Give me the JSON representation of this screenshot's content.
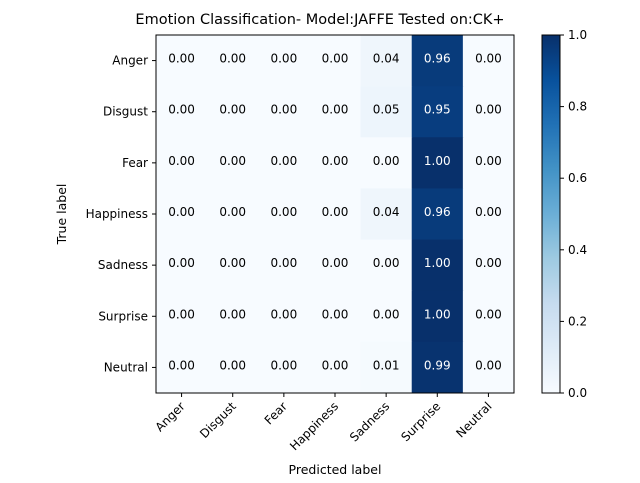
{
  "chart_data": {
    "type": "heatmap",
    "title": "Emotion Classification- Model:JAFFE Tested on:CK+",
    "xlabel": "Predicted label",
    "ylabel": "True label",
    "x_categories": [
      "Anger",
      "Disgust",
      "Fear",
      "Happiness",
      "Sadness",
      "Surprise",
      "Neutral"
    ],
    "y_categories": [
      "Anger",
      "Disgust",
      "Fear",
      "Happiness",
      "Sadness",
      "Surprise",
      "Neutral"
    ],
    "values": [
      [
        0.0,
        0.0,
        0.0,
        0.0,
        0.04,
        0.96,
        0.0
      ],
      [
        0.0,
        0.0,
        0.0,
        0.0,
        0.05,
        0.95,
        0.0
      ],
      [
        0.0,
        0.0,
        0.0,
        0.0,
        0.0,
        1.0,
        0.0
      ],
      [
        0.0,
        0.0,
        0.0,
        0.0,
        0.04,
        0.96,
        0.0
      ],
      [
        0.0,
        0.0,
        0.0,
        0.0,
        0.0,
        1.0,
        0.0
      ],
      [
        0.0,
        0.0,
        0.0,
        0.0,
        0.0,
        1.0,
        0.0
      ],
      [
        0.0,
        0.0,
        0.0,
        0.0,
        0.01,
        0.99,
        0.0
      ]
    ],
    "colormap": "Blues",
    "colorbar": {
      "range": [
        0.0,
        1.0
      ],
      "ticks": [
        "0.0",
        "0.2",
        "0.4",
        "0.6",
        "0.8",
        "1.0"
      ]
    },
    "text_color_dark": "#000000",
    "text_color_light": "#ffffff"
  }
}
